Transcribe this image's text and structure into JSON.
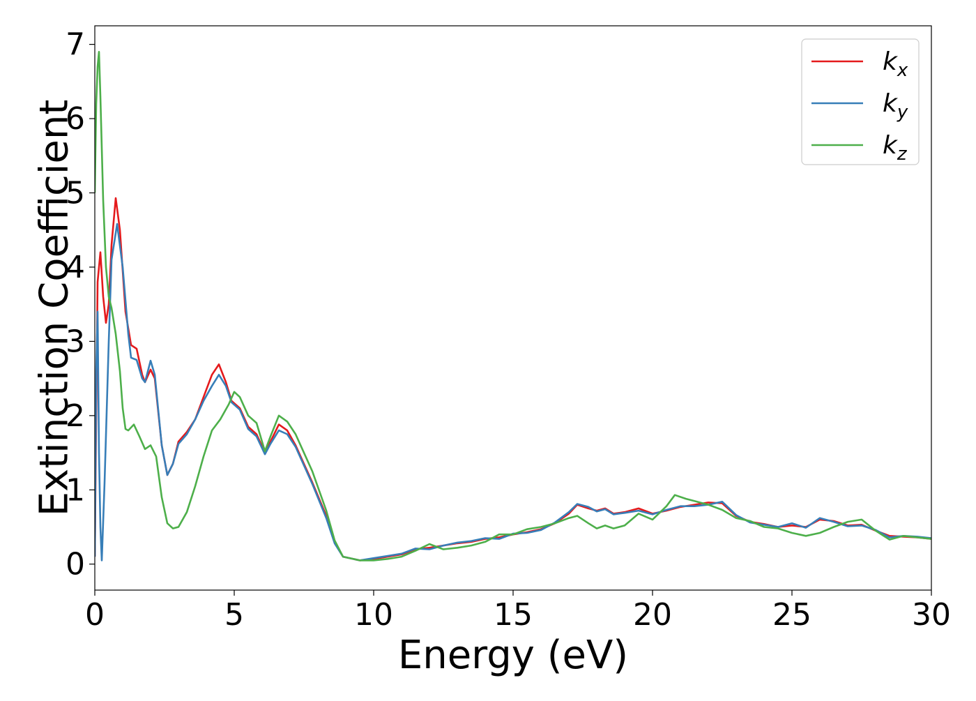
{
  "chart_data": {
    "type": "line",
    "xlabel": "Energy (eV)",
    "ylabel": "Extinction Coefficient",
    "xlim": [
      0,
      30
    ],
    "ylim": [
      -0.35,
      7.25
    ],
    "xticks": [
      0,
      5,
      10,
      15,
      20,
      25,
      30
    ],
    "yticks": [
      0,
      1,
      2,
      3,
      4,
      5,
      6,
      7
    ],
    "grid": false,
    "legend_position": "top-right",
    "series": [
      {
        "name": "k_x",
        "name_base": "k",
        "name_sub": "x",
        "color": "#e41a1c",
        "points": [
          [
            0,
            0.1
          ],
          [
            0.05,
            2.0
          ],
          [
            0.1,
            3.8
          ],
          [
            0.2,
            4.2
          ],
          [
            0.3,
            3.6
          ],
          [
            0.4,
            3.25
          ],
          [
            0.5,
            3.5
          ],
          [
            0.6,
            4.3
          ],
          [
            0.75,
            4.93
          ],
          [
            0.9,
            4.5
          ],
          [
            1.1,
            3.4
          ],
          [
            1.3,
            2.95
          ],
          [
            1.5,
            2.9
          ],
          [
            1.7,
            2.55
          ],
          [
            1.8,
            2.45
          ],
          [
            2.0,
            2.62
          ],
          [
            2.15,
            2.5
          ],
          [
            2.4,
            1.6
          ],
          [
            2.6,
            1.2
          ],
          [
            2.8,
            1.35
          ],
          [
            3.0,
            1.65
          ],
          [
            3.3,
            1.78
          ],
          [
            3.6,
            1.95
          ],
          [
            3.9,
            2.25
          ],
          [
            4.2,
            2.55
          ],
          [
            4.45,
            2.69
          ],
          [
            4.7,
            2.45
          ],
          [
            4.9,
            2.2
          ],
          [
            5.2,
            2.1
          ],
          [
            5.5,
            1.85
          ],
          [
            5.8,
            1.75
          ],
          [
            6.1,
            1.5
          ],
          [
            6.3,
            1.65
          ],
          [
            6.6,
            1.88
          ],
          [
            6.9,
            1.8
          ],
          [
            7.2,
            1.6
          ],
          [
            7.8,
            1.1
          ],
          [
            8.3,
            0.65
          ],
          [
            8.6,
            0.3
          ],
          [
            8.9,
            0.1
          ],
          [
            9.5,
            0.05
          ],
          [
            10,
            0.07
          ],
          [
            10.5,
            0.1
          ],
          [
            11,
            0.13
          ],
          [
            11.5,
            0.2
          ],
          [
            12,
            0.22
          ],
          [
            12.5,
            0.25
          ],
          [
            13,
            0.28
          ],
          [
            13.5,
            0.3
          ],
          [
            14,
            0.34
          ],
          [
            14.5,
            0.36
          ],
          [
            15,
            0.4
          ],
          [
            15.5,
            0.43
          ],
          [
            16,
            0.47
          ],
          [
            16.5,
            0.55
          ],
          [
            17,
            0.68
          ],
          [
            17.3,
            0.8
          ],
          [
            17.7,
            0.75
          ],
          [
            18,
            0.72
          ],
          [
            18.3,
            0.75
          ],
          [
            18.6,
            0.68
          ],
          [
            19,
            0.7
          ],
          [
            19.5,
            0.75
          ],
          [
            20,
            0.68
          ],
          [
            20.5,
            0.72
          ],
          [
            21,
            0.77
          ],
          [
            21.5,
            0.8
          ],
          [
            22,
            0.83
          ],
          [
            22.5,
            0.82
          ],
          [
            23,
            0.65
          ],
          [
            23.5,
            0.57
          ],
          [
            24,
            0.54
          ],
          [
            24.5,
            0.5
          ],
          [
            25,
            0.52
          ],
          [
            25.5,
            0.5
          ],
          [
            26,
            0.6
          ],
          [
            26.5,
            0.58
          ],
          [
            27,
            0.52
          ],
          [
            27.5,
            0.53
          ],
          [
            28,
            0.45
          ],
          [
            28.5,
            0.38
          ],
          [
            29,
            0.37
          ],
          [
            29.5,
            0.36
          ],
          [
            30,
            0.34
          ]
        ]
      },
      {
        "name": "k_y",
        "name_base": "k",
        "name_sub": "y",
        "color": "#377eb8",
        "points": [
          [
            0,
            0.1
          ],
          [
            0.05,
            2.6
          ],
          [
            0.1,
            3.4
          ],
          [
            0.15,
            1.5
          ],
          [
            0.2,
            0.5
          ],
          [
            0.25,
            0.05
          ],
          [
            0.35,
            1.1
          ],
          [
            0.5,
            3.0
          ],
          [
            0.6,
            4.1
          ],
          [
            0.8,
            4.58
          ],
          [
            1.0,
            4.0
          ],
          [
            1.2,
            3.1
          ],
          [
            1.3,
            2.78
          ],
          [
            1.5,
            2.75
          ],
          [
            1.7,
            2.5
          ],
          [
            1.8,
            2.45
          ],
          [
            2.0,
            2.74
          ],
          [
            2.15,
            2.55
          ],
          [
            2.4,
            1.6
          ],
          [
            2.6,
            1.2
          ],
          [
            2.8,
            1.35
          ],
          [
            3.0,
            1.62
          ],
          [
            3.3,
            1.75
          ],
          [
            3.6,
            1.95
          ],
          [
            3.9,
            2.2
          ],
          [
            4.2,
            2.4
          ],
          [
            4.45,
            2.55
          ],
          [
            4.7,
            2.4
          ],
          [
            4.9,
            2.18
          ],
          [
            5.2,
            2.08
          ],
          [
            5.5,
            1.82
          ],
          [
            5.8,
            1.72
          ],
          [
            6.1,
            1.48
          ],
          [
            6.3,
            1.62
          ],
          [
            6.6,
            1.8
          ],
          [
            6.9,
            1.75
          ],
          [
            7.2,
            1.58
          ],
          [
            7.8,
            1.08
          ],
          [
            8.3,
            0.62
          ],
          [
            8.6,
            0.28
          ],
          [
            8.9,
            0.1
          ],
          [
            9.5,
            0.05
          ],
          [
            10,
            0.08
          ],
          [
            10.5,
            0.11
          ],
          [
            11,
            0.14
          ],
          [
            11.5,
            0.21
          ],
          [
            12,
            0.2
          ],
          [
            12.5,
            0.25
          ],
          [
            13,
            0.29
          ],
          [
            13.5,
            0.31
          ],
          [
            14,
            0.35
          ],
          [
            14.5,
            0.34
          ],
          [
            15,
            0.41
          ],
          [
            15.5,
            0.42
          ],
          [
            16,
            0.46
          ],
          [
            16.5,
            0.56
          ],
          [
            17,
            0.7
          ],
          [
            17.3,
            0.81
          ],
          [
            17.7,
            0.77
          ],
          [
            18,
            0.71
          ],
          [
            18.3,
            0.74
          ],
          [
            18.6,
            0.67
          ],
          [
            19,
            0.69
          ],
          [
            19.5,
            0.72
          ],
          [
            20,
            0.67
          ],
          [
            20.5,
            0.73
          ],
          [
            21,
            0.78
          ],
          [
            21.5,
            0.78
          ],
          [
            22,
            0.8
          ],
          [
            22.5,
            0.84
          ],
          [
            23,
            0.66
          ],
          [
            23.5,
            0.56
          ],
          [
            24,
            0.53
          ],
          [
            24.5,
            0.5
          ],
          [
            25,
            0.55
          ],
          [
            25.5,
            0.49
          ],
          [
            26,
            0.62
          ],
          [
            26.5,
            0.57
          ],
          [
            27,
            0.51
          ],
          [
            27.5,
            0.52
          ],
          [
            28,
            0.46
          ],
          [
            28.5,
            0.36
          ],
          [
            29,
            0.38
          ],
          [
            29.5,
            0.37
          ],
          [
            30,
            0.35
          ]
        ]
      },
      {
        "name": "k_z",
        "name_base": "k",
        "name_sub": "z",
        "color": "#4daf4a",
        "points": [
          [
            0,
            5.0
          ],
          [
            0.05,
            6.2
          ],
          [
            0.1,
            6.7
          ],
          [
            0.15,
            6.9
          ],
          [
            0.2,
            6.3
          ],
          [
            0.3,
            4.9
          ],
          [
            0.4,
            4.0
          ],
          [
            0.5,
            3.6
          ],
          [
            0.6,
            3.45
          ],
          [
            0.75,
            3.1
          ],
          [
            0.9,
            2.6
          ],
          [
            1.0,
            2.1
          ],
          [
            1.1,
            1.82
          ],
          [
            1.2,
            1.8
          ],
          [
            1.4,
            1.88
          ],
          [
            1.6,
            1.72
          ],
          [
            1.8,
            1.55
          ],
          [
            2.0,
            1.6
          ],
          [
            2.2,
            1.45
          ],
          [
            2.4,
            0.9
          ],
          [
            2.6,
            0.55
          ],
          [
            2.8,
            0.48
          ],
          [
            3.0,
            0.5
          ],
          [
            3.3,
            0.7
          ],
          [
            3.6,
            1.05
          ],
          [
            3.9,
            1.45
          ],
          [
            4.2,
            1.8
          ],
          [
            4.5,
            1.95
          ],
          [
            4.8,
            2.15
          ],
          [
            5.0,
            2.32
          ],
          [
            5.2,
            2.25
          ],
          [
            5.5,
            2.0
          ],
          [
            5.8,
            1.9
          ],
          [
            6.1,
            1.52
          ],
          [
            6.3,
            1.72
          ],
          [
            6.6,
            2.0
          ],
          [
            6.9,
            1.92
          ],
          [
            7.2,
            1.75
          ],
          [
            7.8,
            1.25
          ],
          [
            8.3,
            0.72
          ],
          [
            8.6,
            0.32
          ],
          [
            8.9,
            0.1
          ],
          [
            9.5,
            0.05
          ],
          [
            10,
            0.05
          ],
          [
            10.5,
            0.07
          ],
          [
            11,
            0.1
          ],
          [
            11.5,
            0.18
          ],
          [
            12,
            0.27
          ],
          [
            12.5,
            0.2
          ],
          [
            13,
            0.22
          ],
          [
            13.5,
            0.25
          ],
          [
            14,
            0.3
          ],
          [
            14.5,
            0.4
          ],
          [
            15,
            0.4
          ],
          [
            15.5,
            0.47
          ],
          [
            16,
            0.5
          ],
          [
            16.5,
            0.55
          ],
          [
            17,
            0.62
          ],
          [
            17.3,
            0.65
          ],
          [
            17.7,
            0.55
          ],
          [
            18,
            0.48
          ],
          [
            18.3,
            0.52
          ],
          [
            18.6,
            0.48
          ],
          [
            19,
            0.52
          ],
          [
            19.5,
            0.68
          ],
          [
            20,
            0.6
          ],
          [
            20.5,
            0.78
          ],
          [
            20.8,
            0.93
          ],
          [
            21.2,
            0.88
          ],
          [
            21.5,
            0.85
          ],
          [
            22,
            0.8
          ],
          [
            22.5,
            0.73
          ],
          [
            23,
            0.62
          ],
          [
            23.5,
            0.58
          ],
          [
            24,
            0.5
          ],
          [
            24.5,
            0.48
          ],
          [
            25,
            0.42
          ],
          [
            25.5,
            0.38
          ],
          [
            26,
            0.42
          ],
          [
            26.5,
            0.5
          ],
          [
            27,
            0.57
          ],
          [
            27.5,
            0.6
          ],
          [
            28,
            0.45
          ],
          [
            28.5,
            0.33
          ],
          [
            29,
            0.38
          ],
          [
            29.5,
            0.36
          ],
          [
            30,
            0.34
          ]
        ]
      }
    ]
  }
}
